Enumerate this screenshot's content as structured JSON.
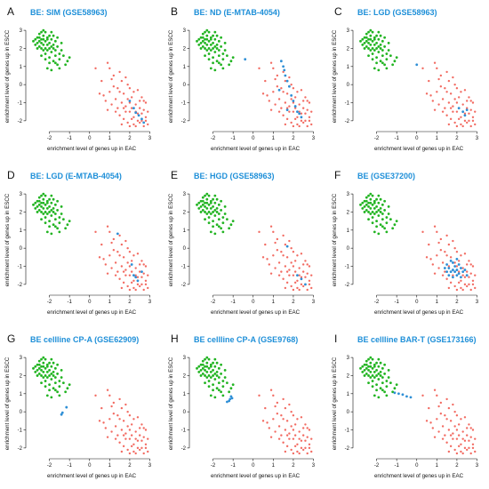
{
  "colors": {
    "esc": "#22b422",
    "eac": "#f26b62",
    "highlight": "#2e8fd6",
    "title": "#1e8fd8"
  },
  "chart_data": [
    {
      "type": "scatter",
      "letter": "A",
      "title": "BE: SIM (GSE58963)",
      "xlabel": "enrichment level of genes up in EAC",
      "ylabel": "enrichment level of genes up in ESCC",
      "xlim": [
        -3,
        3.2
      ],
      "ylim": [
        -2.4,
        3.3
      ],
      "xticks": [
        -2,
        -1,
        0,
        1,
        2,
        3
      ],
      "yticks": [
        -2,
        -1,
        0,
        1,
        2,
        3
      ],
      "series": [
        {
          "name": "",
          "values": []
        }
      ],
      "highlight": [
        [
          2.0,
          -0.9
        ],
        [
          2.2,
          -1.3
        ],
        [
          2.3,
          -1.55
        ],
        [
          2.45,
          -1.7
        ],
        [
          2.6,
          -1.9
        ],
        [
          2.7,
          -2.1
        ]
      ]
    },
    {
      "type": "scatter",
      "letter": "B",
      "title": "BE: ND (E-MTAB-4054)",
      "xlabel": "enrichment level of genes up in EAC",
      "ylabel": "enrichment level of genes up in ESCC",
      "xlim": [
        -3,
        3.2
      ],
      "ylim": [
        -2.4,
        3.3
      ],
      "xticks": [
        -2,
        -1,
        0,
        1,
        2,
        3
      ],
      "yticks": [
        -2,
        -1,
        0,
        1,
        2,
        3
      ],
      "series": [
        {
          "name": "",
          "values": []
        }
      ],
      "highlight": [
        [
          -0.4,
          1.4
        ],
        [
          1.4,
          1.3
        ],
        [
          1.5,
          1.0
        ],
        [
          1.55,
          0.8
        ],
        [
          1.6,
          0.5
        ],
        [
          1.7,
          0.2
        ],
        [
          1.8,
          -0.1
        ],
        [
          1.9,
          -0.6
        ],
        [
          2.0,
          -0.9
        ],
        [
          2.1,
          -1.2
        ],
        [
          2.2,
          -1.5
        ],
        [
          2.3,
          -1.6
        ],
        [
          2.4,
          -1.8
        ],
        [
          1.3,
          -0.3
        ],
        [
          1.7,
          -1.4
        ]
      ]
    },
    {
      "type": "scatter",
      "letter": "C",
      "title": "BE: LGD (GSE58963)",
      "xlabel": "enrichment level of genes up in EAC",
      "ylabel": "enrichment level of genes up in ESCC",
      "xlim": [
        -3,
        3.2
      ],
      "ylim": [
        -2.4,
        3.3
      ],
      "xticks": [
        -2,
        -1,
        0,
        1,
        2,
        3
      ],
      "yticks": [
        -2,
        -1,
        0,
        1,
        2,
        3
      ],
      "series": [
        {
          "name": "",
          "values": []
        }
      ],
      "highlight": [
        [
          0.0,
          1.1
        ],
        [
          2.1,
          -1.3
        ],
        [
          2.3,
          -1.5
        ],
        [
          2.4,
          -1.7
        ],
        [
          2.5,
          -1.4
        ]
      ]
    },
    {
      "type": "scatter",
      "letter": "D",
      "title": "BE: LGD (E-MTAB-4054)",
      "xlabel": "enrichment level of genes up in EAC",
      "ylabel": "enrichment level of genes up in ESCC",
      "xlim": [
        -3,
        3.2
      ],
      "ylim": [
        -2.4,
        3.3
      ],
      "xticks": [
        -2,
        -1,
        0,
        1,
        2,
        3
      ],
      "yticks": [
        -2,
        -1,
        0,
        1,
        2,
        3
      ],
      "series": [
        {
          "name": "",
          "values": []
        }
      ],
      "highlight": [
        [
          1.4,
          0.8
        ],
        [
          2.1,
          -0.9
        ],
        [
          2.2,
          -1.5
        ],
        [
          2.3,
          -1.6
        ],
        [
          2.4,
          -1.8
        ],
        [
          2.6,
          -1.3
        ]
      ]
    },
    {
      "type": "scatter",
      "letter": "E",
      "title": "BE: HGD (GSE58963)",
      "xlabel": "enrichment level of genes up in EAC",
      "ylabel": "enrichment level of genes up in ESCC",
      "xlim": [
        -3,
        3.2
      ],
      "ylim": [
        -2.4,
        3.3
      ],
      "xticks": [
        -2,
        -1,
        0,
        1,
        2,
        3
      ],
      "yticks": [
        -2,
        -1,
        0,
        1,
        2,
        3
      ],
      "series": [
        {
          "name": "",
          "values": []
        }
      ],
      "highlight": [
        [
          1.7,
          0.1
        ],
        [
          2.2,
          -1.5
        ],
        [
          2.4,
          -1.7
        ],
        [
          2.6,
          -2.0
        ]
      ]
    },
    {
      "type": "scatter",
      "letter": "F",
      "title": "BE (GSE37200)",
      "xlabel": "enrichment level of genes up in EAC",
      "ylabel": "enrichment level of genes up in ESCC",
      "xlim": [
        -3,
        3.2
      ],
      "ylim": [
        -2.4,
        3.3
      ],
      "xticks": [
        -2,
        -1,
        0,
        1,
        2,
        3
      ],
      "yticks": [
        -2,
        -1,
        0,
        1,
        2,
        3
      ],
      "series": [
        {
          "name": "",
          "values": []
        }
      ],
      "highlight": [
        [
          1.5,
          -0.9
        ],
        [
          1.6,
          -1.1
        ],
        [
          1.7,
          -1.3
        ],
        [
          1.8,
          -0.8
        ],
        [
          1.9,
          -1.0
        ],
        [
          2.0,
          -1.2
        ],
        [
          2.1,
          -1.4
        ],
        [
          2.2,
          -1.1
        ],
        [
          2.3,
          -1.3
        ],
        [
          1.6,
          -1.5
        ],
        [
          1.8,
          -1.6
        ],
        [
          2.0,
          -1.5
        ],
        [
          2.4,
          -1.2
        ],
        [
          1.7,
          -0.7
        ],
        [
          1.9,
          -1.3
        ],
        [
          2.1,
          -0.9
        ],
        [
          2.2,
          -1.6
        ],
        [
          1.5,
          -1.3
        ],
        [
          2.0,
          -0.6
        ],
        [
          1.8,
          -1.2
        ],
        [
          2.5,
          -1.5
        ],
        [
          1.4,
          -1.1
        ]
      ]
    },
    {
      "type": "scatter",
      "letter": "G",
      "title": "BE cellline CP-A (GSE62909)",
      "xlabel": "enrichment level of genes up in EAC",
      "ylabel": "enrichment level of genes up in ESCC",
      "xlim": [
        -3,
        3.2
      ],
      "ylim": [
        -2.4,
        3.3
      ],
      "xticks": [
        -2,
        -1,
        0,
        1,
        2,
        3
      ],
      "yticks": [
        -2,
        -1,
        0,
        1,
        2,
        3
      ],
      "series": [
        {
          "name": "",
          "values": []
        }
      ],
      "highlight": [
        [
          -1.15,
          0.25
        ],
        [
          -1.35,
          -0.05
        ],
        [
          -1.4,
          -0.15
        ]
      ]
    },
    {
      "type": "scatter",
      "letter": "H",
      "title": "BE cellline CP-A (GSE9768)",
      "xlabel": "enrichment level of genes up in EAC",
      "ylabel": "enrichment level of genes up in ESCC",
      "xlim": [
        -3,
        3.2
      ],
      "ylim": [
        -2.4,
        3.3
      ],
      "xticks": [
        -2,
        -1,
        0,
        1,
        2,
        3
      ],
      "yticks": [
        -2,
        -1,
        0,
        1,
        2,
        3
      ],
      "series": [
        {
          "name": "",
          "values": []
        }
      ],
      "highlight": [
        [
          -1.1,
          0.85
        ],
        [
          -1.15,
          0.7
        ],
        [
          -1.2,
          0.6
        ],
        [
          -1.3,
          0.55
        ],
        [
          -1.05,
          0.75
        ]
      ]
    },
    {
      "type": "scatter",
      "letter": "I",
      "title": "BE cellline BAR-T (GSE173166)",
      "xlabel": "enrichment level of genes up in EAC",
      "ylabel": "enrichment level of genes up in ESCC",
      "xlim": [
        -3,
        3.2
      ],
      "ylim": [
        -2.4,
        3.3
      ],
      "xticks": [
        -2,
        -1,
        0,
        1,
        2,
        3
      ],
      "yticks": [
        -2,
        -1,
        0,
        1,
        2,
        3
      ],
      "series": [
        {
          "name": "",
          "values": []
        }
      ],
      "highlight": [
        [
          -1.1,
          1.05
        ],
        [
          -0.9,
          1.0
        ],
        [
          -0.7,
          0.95
        ],
        [
          -0.5,
          0.85
        ],
        [
          -0.3,
          0.8
        ]
      ]
    }
  ],
  "shared_points": {
    "esc": [
      [
        -2.6,
        2.6
      ],
      [
        -2.5,
        2.8
      ],
      [
        -2.4,
        2.5
      ],
      [
        -2.3,
        2.7
      ],
      [
        -2.2,
        2.4
      ],
      [
        -2.1,
        2.6
      ],
      [
        -2.0,
        2.3
      ],
      [
        -1.9,
        2.5
      ],
      [
        -1.8,
        2.2
      ],
      [
        -1.7,
        2.4
      ],
      [
        -2.6,
        2.3
      ],
      [
        -2.5,
        2.1
      ],
      [
        -2.4,
        2.9
      ],
      [
        -2.3,
        2.2
      ],
      [
        -2.2,
        2.0
      ],
      [
        -2.1,
        1.9
      ],
      [
        -2.0,
        2.7
      ],
      [
        -1.9,
        1.8
      ],
      [
        -1.8,
        2.0
      ],
      [
        -1.7,
        1.6
      ],
      [
        -1.6,
        2.1
      ],
      [
        -1.5,
        1.7
      ],
      [
        -2.7,
        2.5
      ],
      [
        -2.8,
        2.4
      ],
      [
        -2.4,
        2.0
      ],
      [
        -2.2,
        1.7
      ],
      [
        -2.0,
        1.5
      ],
      [
        -1.9,
        2.9
      ],
      [
        -2.3,
        3.0
      ],
      [
        -2.6,
        2.0
      ],
      [
        -2.5,
        2.4
      ],
      [
        -2.3,
        2.5
      ],
      [
        -2.1,
        2.2
      ],
      [
        -1.9,
        2.1
      ],
      [
        -1.7,
        1.9
      ],
      [
        -1.5,
        1.4
      ],
      [
        -1.3,
        1.6
      ],
      [
        -1.2,
        1.1
      ],
      [
        -2.0,
        1.2
      ],
      [
        -1.8,
        1.3
      ],
      [
        -1.6,
        1.1
      ],
      [
        -2.2,
        1.4
      ],
      [
        -2.4,
        1.6
      ],
      [
        -1.4,
        1.9
      ],
      [
        -1.1,
        1.3
      ],
      [
        -2.7,
        2.2
      ],
      [
        -2.0,
        2.0
      ],
      [
        -2.2,
        2.9
      ],
      [
        -1.6,
        2.6
      ],
      [
        -1.8,
        2.7
      ],
      [
        -1.4,
        2.3
      ],
      [
        -2.3,
        1.9
      ],
      [
        -2.5,
        2.6
      ],
      [
        -1.7,
        1.2
      ],
      [
        -2.1,
        0.9
      ],
      [
        -1.9,
        0.8
      ],
      [
        -1.5,
        0.9
      ],
      [
        -1.0,
        1.5
      ],
      [
        -2.4,
        2.3
      ],
      [
        -2.1,
        2.5
      ]
    ],
    "eac": [
      [
        0.3,
        0.9
      ],
      [
        0.6,
        0.2
      ],
      [
        0.9,
        1.2
      ],
      [
        1.0,
        -0.4
      ],
      [
        1.2,
        0.5
      ],
      [
        1.3,
        -0.8
      ],
      [
        1.4,
        -0.2
      ],
      [
        1.5,
        0.7
      ],
      [
        1.6,
        -1.0
      ],
      [
        1.7,
        -0.5
      ],
      [
        1.8,
        -1.2
      ],
      [
        1.9,
        0.0
      ],
      [
        2.0,
        -1.5
      ],
      [
        2.1,
        -0.7
      ],
      [
        2.2,
        -1.8
      ],
      [
        2.3,
        -1.1
      ],
      [
        2.4,
        -1.6
      ],
      [
        2.5,
        -0.9
      ],
      [
        2.6,
        -2.0
      ],
      [
        2.7,
        -1.4
      ],
      [
        2.8,
        -1.8
      ],
      [
        2.9,
        -2.2
      ],
      [
        1.1,
        -1.1
      ],
      [
        1.3,
        -1.5
      ],
      [
        1.5,
        -1.7
      ],
      [
        1.7,
        -1.9
      ],
      [
        1.9,
        -2.1
      ],
      [
        2.1,
        -1.9
      ],
      [
        2.3,
        -2.3
      ],
      [
        2.5,
        -2.1
      ],
      [
        0.8,
        -0.9
      ],
      [
        0.7,
        -0.6
      ],
      [
        1.6,
        0.2
      ],
      [
        1.8,
        0.4
      ],
      [
        2.0,
        -0.2
      ],
      [
        2.2,
        -0.4
      ],
      [
        2.4,
        -0.3
      ],
      [
        2.6,
        -0.7
      ],
      [
        2.8,
        -1.0
      ],
      [
        2.7,
        -2.3
      ],
      [
        2.2,
        -2.2
      ],
      [
        1.4,
        -1.3
      ],
      [
        1.2,
        -0.1
      ],
      [
        0.5,
        -0.5
      ],
      [
        1.0,
        0.9
      ],
      [
        1.9,
        -0.8
      ],
      [
        2.1,
        -1.3
      ],
      [
        2.3,
        -1.5
      ],
      [
        2.5,
        -1.3
      ],
      [
        2.4,
        -2.0
      ],
      [
        2.6,
        -1.6
      ],
      [
        1.7,
        -1.3
      ],
      [
        1.5,
        -0.4
      ],
      [
        2.0,
        -1.0
      ],
      [
        1.8,
        -1.5
      ],
      [
        2.9,
        -1.5
      ],
      [
        0.9,
        -1.4
      ],
      [
        1.1,
        0.3
      ],
      [
        2.7,
        -0.9
      ],
      [
        2.0,
        -2.3
      ],
      [
        1.6,
        -2.2
      ],
      [
        2.8,
        -2.0
      ]
    ]
  }
}
